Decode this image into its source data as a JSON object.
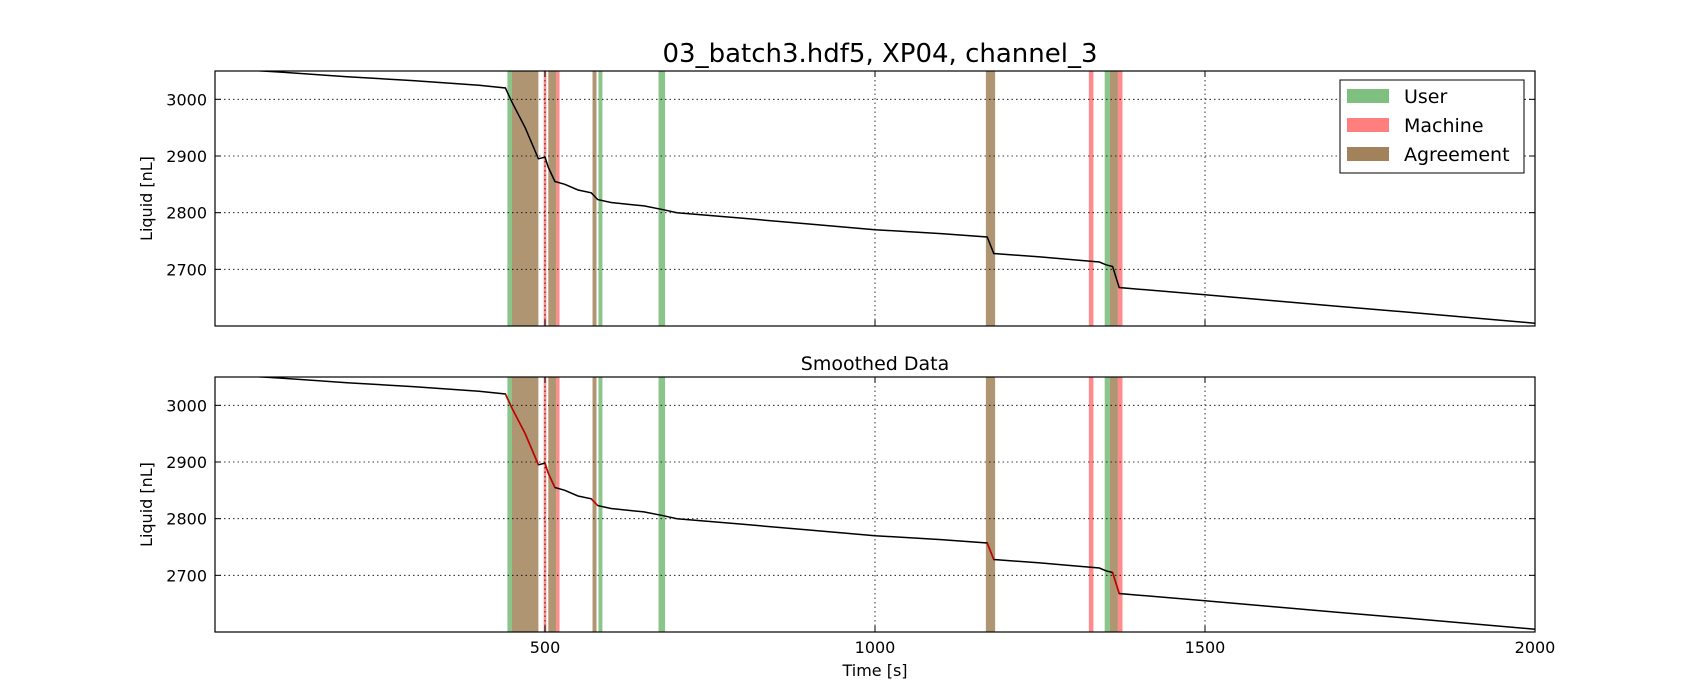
{
  "figure": {
    "title": "03_batch3.hdf5, XP04, channel_3"
  },
  "legend": {
    "items": [
      {
        "label": "User",
        "color": "#7fbf7f"
      },
      {
        "label": "Machine",
        "color": "#ff7f7f"
      },
      {
        "label": "Agreement",
        "color": "#a2825a"
      }
    ],
    "placement": "top-right of top panel"
  },
  "chart_data": [
    {
      "type": "line",
      "panel": "raw",
      "title": "",
      "xlabel": "",
      "ylabel": "Liquid [nL]",
      "xlim": [
        0,
        2000
      ],
      "ylim": [
        2600,
        3050
      ],
      "xticks": [
        500,
        1000,
        1500,
        2000
      ],
      "xtick_labels_shown": false,
      "yticks": [
        2700,
        2800,
        2900,
        3000
      ],
      "grid": true,
      "line_color": "#000000",
      "series": [
        {
          "x": [
            0,
            100,
            200,
            300,
            400,
            440,
            450,
            470,
            490,
            500,
            505,
            515,
            530,
            550,
            570,
            580,
            600,
            650,
            680,
            700,
            800,
            900,
            1000,
            1100,
            1170,
            1180,
            1250,
            1300,
            1340,
            1350,
            1360,
            1370,
            1400,
            1500,
            1600,
            1700,
            1800,
            1900,
            2000
          ],
          "y": [
            3055,
            3048,
            3040,
            3033,
            3025,
            3020,
            2995,
            2950,
            2895,
            2898,
            2880,
            2855,
            2850,
            2840,
            2835,
            2823,
            2818,
            2812,
            2805,
            2800,
            2790,
            2780,
            2770,
            2763,
            2757,
            2728,
            2722,
            2717,
            2713,
            2708,
            2705,
            2668,
            2665,
            2655,
            2645,
            2635,
            2625,
            2615,
            2605
          ]
        }
      ],
      "annotations": [
        {
          "kind": "User",
          "x_range": [
            443,
            450
          ]
        },
        {
          "kind": "User",
          "x_range": [
            672,
            682
          ]
        },
        {
          "kind": "User",
          "x_range": [
            581,
            587
          ]
        },
        {
          "kind": "User",
          "x_range": [
            1348,
            1356
          ]
        },
        {
          "kind": "Machine",
          "x_range": [
            498,
            502
          ]
        },
        {
          "kind": "Machine",
          "x_range": [
            517,
            522
          ]
        },
        {
          "kind": "Machine",
          "x_range": [
            1324,
            1331
          ]
        },
        {
          "kind": "Machine",
          "x_range": [
            1368,
            1375
          ]
        },
        {
          "kind": "Agreement",
          "x_range": [
            450,
            490
          ]
        },
        {
          "kind": "Agreement",
          "x_range": [
            505,
            517
          ]
        },
        {
          "kind": "Agreement",
          "x_range": [
            572,
            578
          ]
        },
        {
          "kind": "Agreement",
          "x_range": [
            1168,
            1182
          ]
        },
        {
          "kind": "Agreement",
          "x_range": [
            1356,
            1368
          ]
        }
      ]
    },
    {
      "type": "line",
      "panel": "smoothed",
      "title": "Smoothed Data",
      "xlabel": "Time [s]",
      "ylabel": "Liquid [nL]",
      "xlim": [
        0,
        2000
      ],
      "ylim": [
        2600,
        3050
      ],
      "xticks": [
        500,
        1000,
        1500,
        2000
      ],
      "xtick_labels_shown": true,
      "yticks": [
        2700,
        2800,
        2900,
        3000
      ],
      "grid": true,
      "line_color": "#000000",
      "highlight_color": "#cc0000",
      "series": [
        {
          "x": [
            0,
            100,
            200,
            300,
            400,
            440,
            450,
            470,
            490,
            500,
            505,
            515,
            530,
            550,
            570,
            580,
            600,
            650,
            680,
            700,
            800,
            900,
            1000,
            1100,
            1170,
            1180,
            1250,
            1300,
            1340,
            1350,
            1360,
            1370,
            1400,
            1500,
            1600,
            1700,
            1800,
            1900,
            2000
          ],
          "y": [
            3055,
            3048,
            3040,
            3033,
            3025,
            3020,
            2995,
            2950,
            2895,
            2898,
            2880,
            2855,
            2850,
            2840,
            2835,
            2823,
            2818,
            2812,
            2805,
            2800,
            2790,
            2780,
            2770,
            2763,
            2757,
            2728,
            2722,
            2717,
            2713,
            2708,
            2705,
            2668,
            2665,
            2655,
            2645,
            2635,
            2625,
            2615,
            2605
          ]
        }
      ],
      "annotations": [
        {
          "kind": "User",
          "x_range": [
            443,
            450
          ]
        },
        {
          "kind": "User",
          "x_range": [
            672,
            682
          ]
        },
        {
          "kind": "User",
          "x_range": [
            581,
            587
          ]
        },
        {
          "kind": "User",
          "x_range": [
            1348,
            1356
          ]
        },
        {
          "kind": "Machine",
          "x_range": [
            498,
            502
          ]
        },
        {
          "kind": "Machine",
          "x_range": [
            517,
            522
          ]
        },
        {
          "kind": "Machine",
          "x_range": [
            1324,
            1331
          ]
        },
        {
          "kind": "Machine",
          "x_range": [
            1368,
            1375
          ]
        },
        {
          "kind": "Agreement",
          "x_range": [
            450,
            490
          ]
        },
        {
          "kind": "Agreement",
          "x_range": [
            505,
            517
          ]
        },
        {
          "kind": "Agreement",
          "x_range": [
            572,
            578
          ]
        },
        {
          "kind": "Agreement",
          "x_range": [
            1168,
            1182
          ]
        },
        {
          "kind": "Agreement",
          "x_range": [
            1356,
            1368
          ]
        }
      ]
    }
  ]
}
